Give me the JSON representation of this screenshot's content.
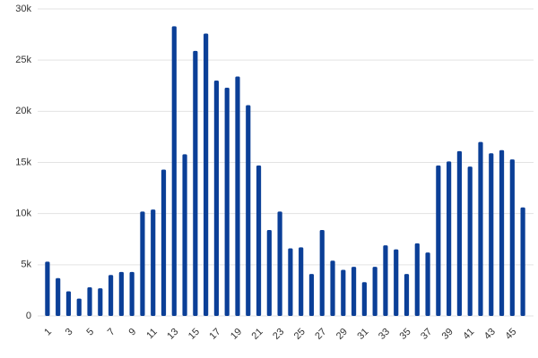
{
  "chart_data": {
    "type": "bar",
    "categories": [
      "1",
      null,
      "3",
      null,
      "5",
      null,
      "7",
      null,
      "9",
      null,
      "11",
      null,
      "13",
      null,
      "15",
      null,
      "17",
      null,
      "19",
      null,
      "21",
      null,
      "23",
      null,
      "25",
      null,
      "27",
      null,
      "29",
      null,
      "31",
      null,
      "33",
      null,
      "35",
      null,
      "37",
      null,
      "39",
      null,
      "41",
      null,
      "43",
      null,
      "45",
      null
    ],
    "values": [
      5300,
      3700,
      2400,
      1700,
      2800,
      2700,
      4000,
      4300,
      4300,
      10200,
      10400,
      14300,
      28300,
      15800,
      25900,
      27600,
      23000,
      22300,
      23400,
      20600,
      14700,
      8400,
      10200,
      6600,
      6700,
      4100,
      8400,
      5400,
      4500,
      4800,
      3300,
      4800,
      6900,
      6500,
      4100,
      7100,
      6200,
      14700,
      15100,
      16100,
      14600,
      17000,
      15900,
      16200,
      15300,
      10600
    ],
    "color": "#0b3f97",
    "ylim": [
      0,
      30000
    ],
    "yticks": [
      0,
      {
        "value": 5000,
        "label": "5k"
      },
      {
        "value": 10000,
        "label": "10k"
      },
      {
        "value": 15000,
        "label": "15k"
      },
      {
        "value": 20000,
        "label": "20k"
      },
      {
        "value": 25000,
        "label": "25k"
      },
      {
        "value": 30000,
        "label": "30k"
      }
    ],
    "grid": true
  }
}
